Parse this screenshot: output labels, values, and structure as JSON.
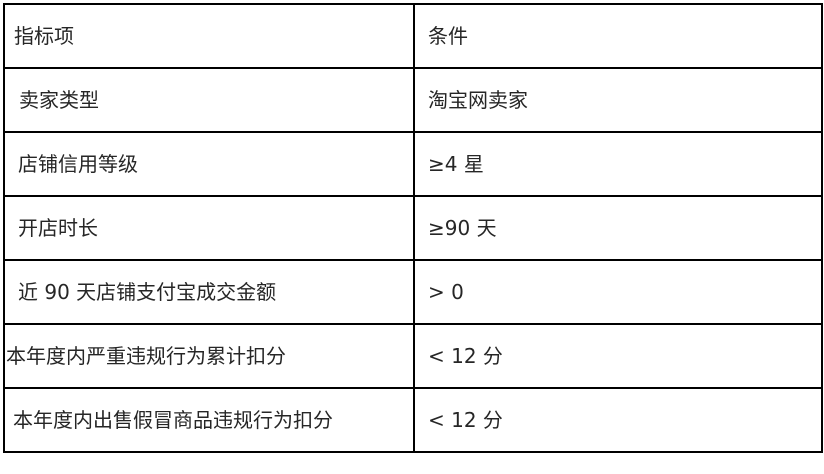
{
  "table": {
    "header": {
      "indicator": "指标项",
      "condition": "条件"
    },
    "rows": [
      {
        "indicator": "卖家类型",
        "condition": "淘宝网卖家"
      },
      {
        "indicator": "店铺信用等级",
        "condition": "≥4 星"
      },
      {
        "indicator": "开店时长",
        "condition": "≥90 天"
      },
      {
        "indicator": "近 90 天店铺支付宝成交金额",
        "condition": "> 0"
      },
      {
        "indicator": "本年度内严重违规行为累计扣分",
        "condition": "< 12 分"
      },
      {
        "indicator": "本年度内出售假冒商品违规行为扣分",
        "condition": "< 12 分"
      }
    ],
    "colors": {
      "border": "#000000",
      "text": "#262626",
      "background": "#ffffff"
    }
  }
}
